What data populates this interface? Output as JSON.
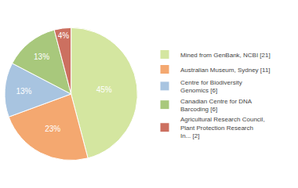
{
  "chart_data": {
    "type": "pie",
    "categories": [
      "Mined from GenBank, NCBI [21]",
      "Australian Museum, Sydney [11]",
      "Centre for Biodiversity\nGenomics [6]",
      "Canadian Centre for DNA\nBarcoding [6]",
      "Agricultural Research Council,\nPlant Protection Research\nIn... [2]"
    ],
    "values": [
      45,
      23,
      13,
      13,
      4
    ],
    "value_labels": [
      "45%",
      "23%",
      "13%",
      "13%",
      "4%"
    ],
    "colors": [
      "#d4e6a0",
      "#f4a870",
      "#a8c4e0",
      "#a8c87c",
      "#cc7060"
    ],
    "data_labels": true,
    "legend": "right"
  }
}
